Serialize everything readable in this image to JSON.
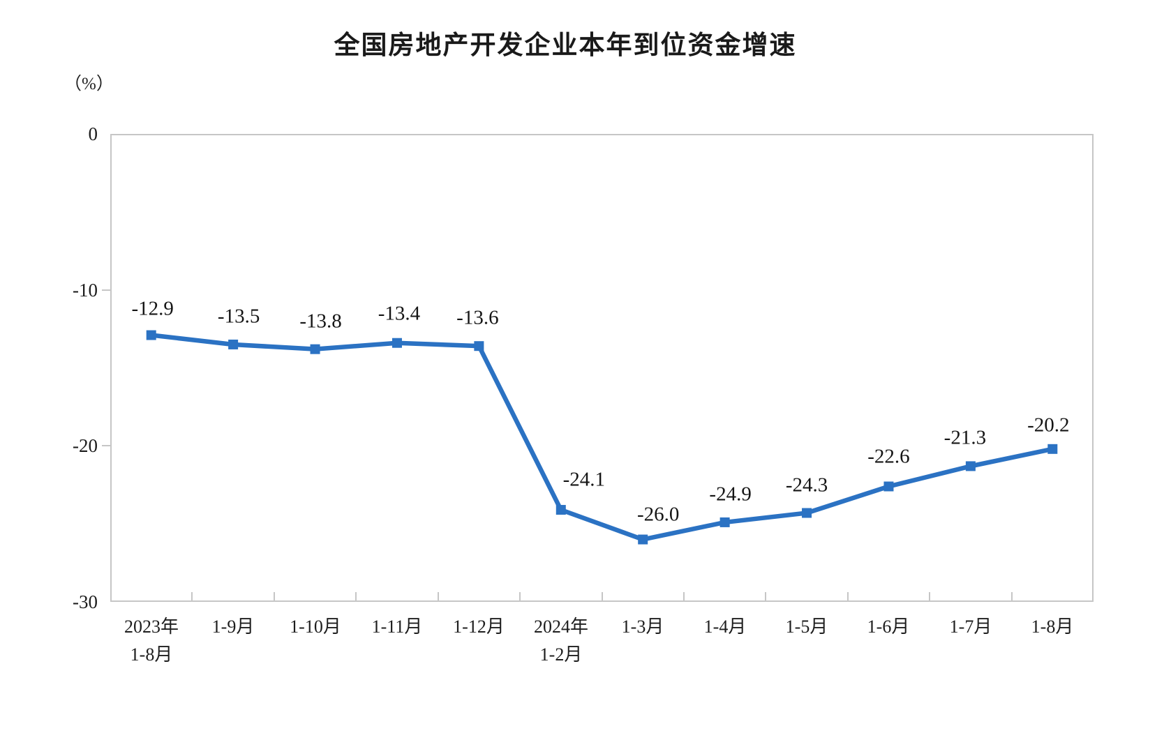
{
  "chart_data": {
    "type": "line",
    "title": "全国房地产开发企业本年到位资金增速",
    "unit_label": "（%）",
    "categories": [
      {
        "label": "2023年",
        "sublabel": "1-8月"
      },
      {
        "label": "1-9月"
      },
      {
        "label": "1-10月"
      },
      {
        "label": "1-11月"
      },
      {
        "label": "1-12月"
      },
      {
        "label": "2024年",
        "sublabel": "1-2月"
      },
      {
        "label": "1-3月"
      },
      {
        "label": "1-4月"
      },
      {
        "label": "1-5月"
      },
      {
        "label": "1-6月"
      },
      {
        "label": "1-7月"
      },
      {
        "label": "1-8月"
      }
    ],
    "values": [
      -12.9,
      -13.5,
      -13.8,
      -13.4,
      -13.6,
      -24.1,
      -26.0,
      -24.9,
      -24.3,
      -22.6,
      -21.3,
      -20.2
    ],
    "point_labels": [
      "-12.9",
      "-13.5",
      "-13.8",
      "-13.4",
      "-13.6",
      "-24.1",
      "-26.0",
      "-24.9",
      "-24.3",
      "-22.6",
      "-21.3",
      "-20.2"
    ],
    "y_ticks": [
      0,
      -10,
      -20,
      -30
    ],
    "y_tick_labels": [
      "0",
      "-10",
      "-20",
      "-30"
    ],
    "ylim": [
      -30,
      0
    ],
    "grid": false,
    "legend": "none",
    "line_color": "#2B72C3",
    "marker": "square",
    "axis_color": "#c6c6c6"
  }
}
